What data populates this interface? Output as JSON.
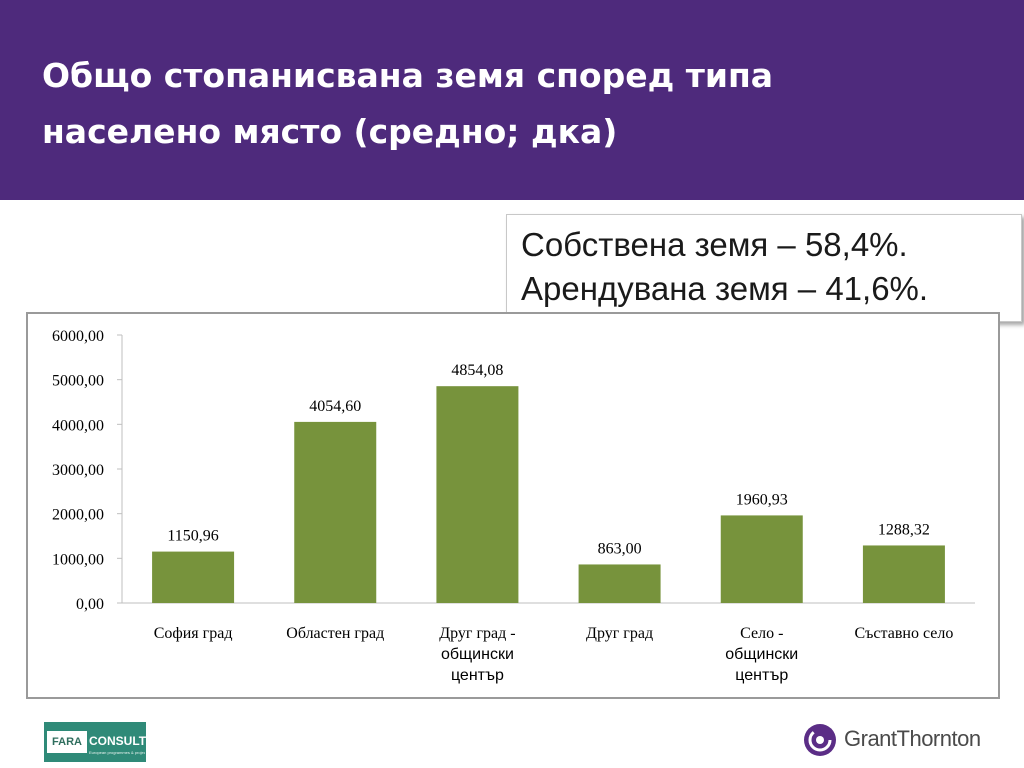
{
  "slide": {
    "title": "Общо стопанисвана земя според типа\nнаселено място (средно; дка)",
    "callout": {
      "line1": "Собствена земя – 58,4%.",
      "line2": "Арендувана земя – 41,6%."
    },
    "colors": {
      "header": "#4e2a7c",
      "bar": "#77933c"
    }
  },
  "chart_data": {
    "type": "bar",
    "categories": [
      "София град",
      "Областен град",
      "Друг град - общински център",
      "Друг град",
      "Село - общински център",
      "Съставно село"
    ],
    "category_lines": [
      [
        "София град"
      ],
      [
        "Областен град"
      ],
      [
        "Друг град -",
        "общински",
        "център"
      ],
      [
        "Друг град"
      ],
      [
        "Село -",
        "общински",
        "център"
      ],
      [
        "Съставно село"
      ]
    ],
    "values": [
      1150.96,
      4054.6,
      4854.08,
      863.0,
      1960.93,
      1288.32
    ],
    "value_labels": [
      "1150,96",
      "4054,60",
      "4854,08",
      "863,00",
      "1960,93",
      "1288,32"
    ],
    "ylim": [
      0,
      6000
    ],
    "yticks": [
      0,
      1000,
      2000,
      3000,
      4000,
      5000,
      6000
    ],
    "ytick_labels": [
      "0,00",
      "1000,00",
      "2000,00",
      "3000,00",
      "4000,00",
      "5000,00",
      "6000,00"
    ],
    "grid": false,
    "legend": "none",
    "title": "",
    "xlabel": "",
    "ylabel": ""
  },
  "logos": {
    "fara": {
      "name": "FARA",
      "suffix": "CONSULT",
      "tagline": "European programmes & projects"
    },
    "grantthornton": {
      "name": "GrantThornton"
    }
  }
}
